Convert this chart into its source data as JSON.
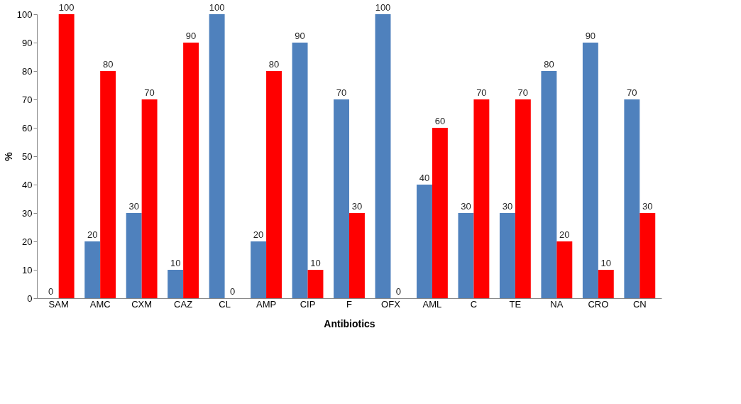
{
  "chart_data": {
    "type": "bar",
    "xlabel": "Antibiotics",
    "ylabel": "%",
    "categories": [
      "SAM",
      "AMC",
      "CXM",
      "CAZ",
      "CL",
      "AMP",
      "CIP",
      "F",
      "OFX",
      "AML",
      "C",
      "TE",
      "NA",
      "CRO",
      "CN"
    ],
    "series": [
      {
        "color": "#4f81bd",
        "values": [
          0,
          20,
          30,
          10,
          100,
          20,
          90,
          70,
          100,
          40,
          30,
          30,
          80,
          90,
          70
        ]
      },
      {
        "color": "#ff0000",
        "values": [
          100,
          80,
          70,
          90,
          0,
          80,
          10,
          30,
          0,
          60,
          70,
          70,
          20,
          10,
          30
        ]
      }
    ],
    "ylim": [
      0,
      100
    ],
    "yticks": [
      0,
      10,
      20,
      30,
      40,
      50,
      60,
      70,
      80,
      90,
      100
    ],
    "grid": false,
    "legend": false,
    "data_labels": true
  }
}
